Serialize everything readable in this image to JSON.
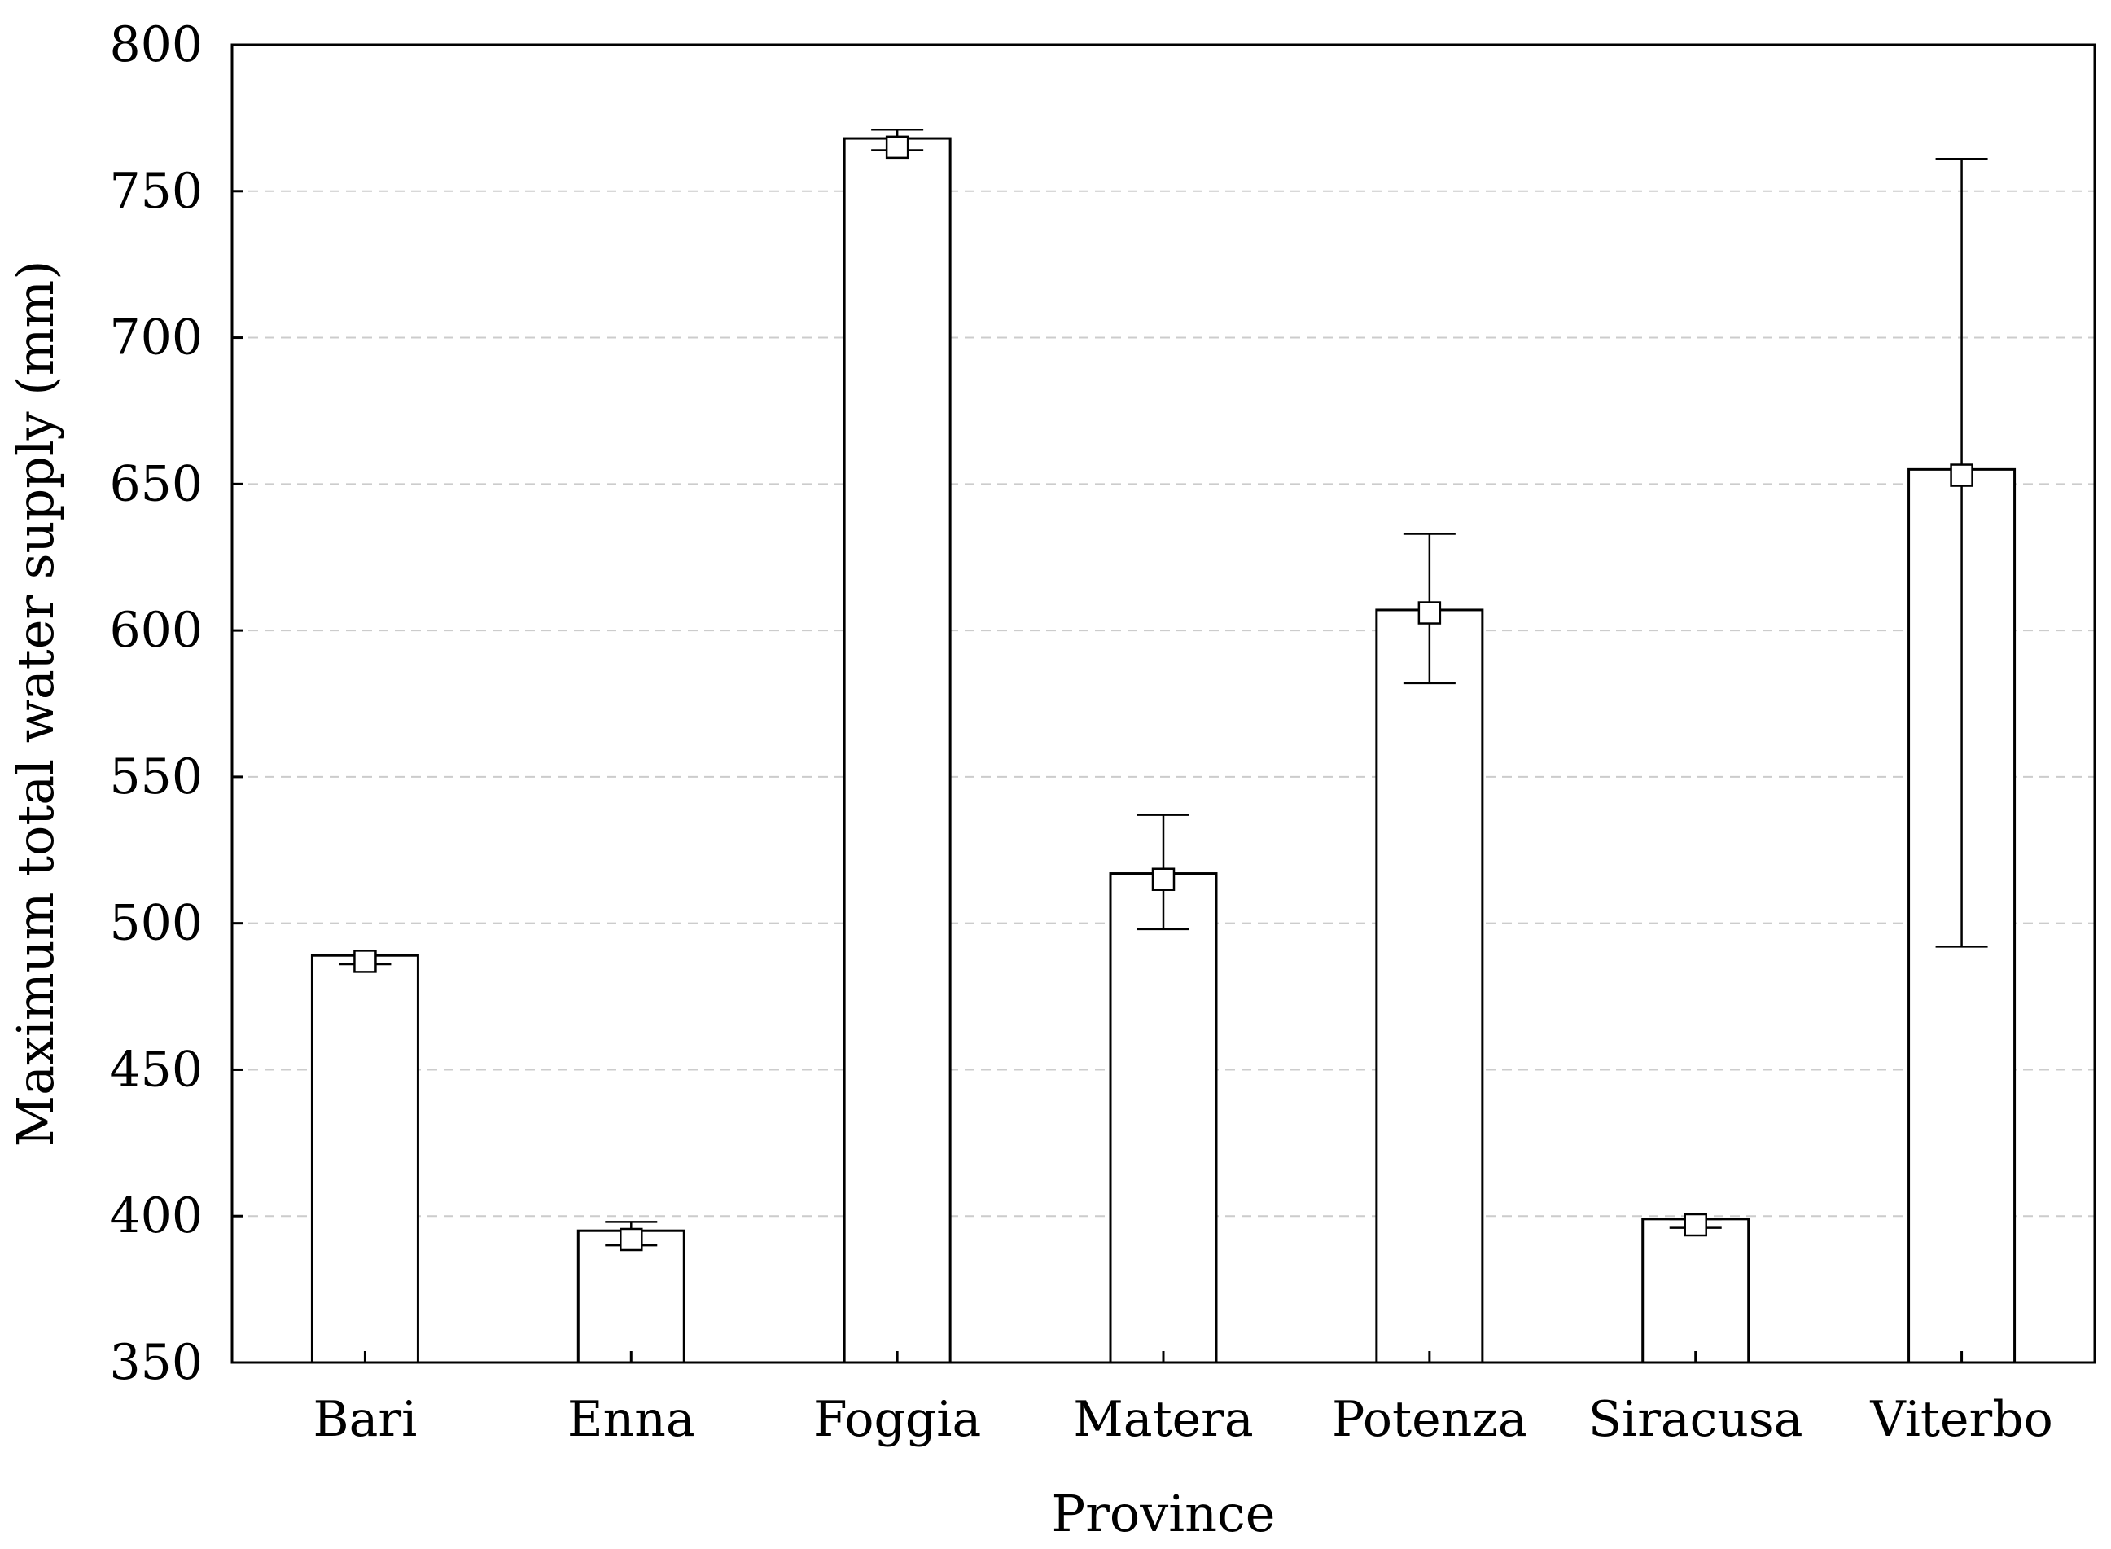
{
  "chart_data": {
    "type": "bar",
    "xlabel": "Province",
    "ylabel": "Maximum total water supply (mm)",
    "ylim": [
      350,
      800
    ],
    "yticks": [
      350,
      400,
      450,
      500,
      550,
      600,
      650,
      700,
      750,
      800
    ],
    "categories": [
      "Bari",
      "Enna",
      "Foggia",
      "Matera",
      "Potenza",
      "Siracusa",
      "Viterbo"
    ],
    "values": [
      489,
      395,
      768,
      517,
      607,
      399,
      655
    ],
    "means": [
      487,
      392,
      765,
      515,
      606,
      397,
      653
    ],
    "error_low": [
      486,
      390,
      764,
      498,
      582,
      396,
      492
    ],
    "error_high": [
      489,
      398,
      771,
      537,
      633,
      399,
      761
    ],
    "grid": "horizontal dashed",
    "legend": "none"
  }
}
